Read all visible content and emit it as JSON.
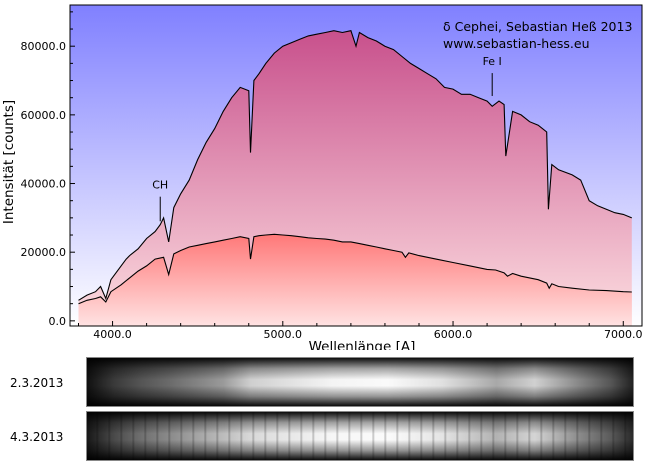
{
  "chart_data": {
    "type": "area",
    "title": "δ Cephei, Sebastian Heß 2013",
    "subtitle": "www.sebastian-hess.eu",
    "xlabel": "Wellenlänge [A]",
    "ylabel": "Intensität [counts]",
    "xlim": [
      3750,
      7110
    ],
    "ylim": [
      -1500,
      92000
    ],
    "x_ticks": [
      4000,
      5000,
      6000,
      7000
    ],
    "x_tick_labels": [
      "4000.0",
      "5000.0",
      "6000.0",
      "7000.0"
    ],
    "y_ticks": [
      0,
      20000,
      40000,
      60000,
      80000
    ],
    "y_tick_labels": [
      "0.0",
      "20000.0",
      "40000.0",
      "60000.0",
      "80000.0"
    ],
    "grid": false,
    "annotations": [
      {
        "label": "CH",
        "x": 4280,
        "y_tip": 29000,
        "y_text": 38500
      },
      {
        "label": "Fe I",
        "x": 6230,
        "y_tip": 65500,
        "y_text": 74500
      }
    ],
    "colors": {
      "background_top": "#8080ff",
      "background_bottom": "#ffffff",
      "fill_upper_top": "#c8508c",
      "fill_upper_bottom": "#ffe4e4",
      "fill_lower_top": "#ff7878",
      "fill_lower_bottom": "#ffefef",
      "line": "#000000"
    },
    "series": [
      {
        "x": [
          3800,
          3850,
          3900,
          3930,
          3960,
          3990,
          4020,
          4050,
          4080,
          4100,
          4150,
          4200,
          4250,
          4280,
          4300,
          4330,
          4360,
          4400,
          4450,
          4500,
          4550,
          4600,
          4650,
          4700,
          4750,
          4800,
          4810,
          4830,
          4860,
          4900,
          4950,
          5000,
          5050,
          5100,
          5150,
          5200,
          5250,
          5300,
          5350,
          5400,
          5430,
          5450,
          5500,
          5550,
          5600,
          5650,
          5700,
          5750,
          5800,
          5850,
          5900,
          5950,
          6000,
          6050,
          6100,
          6150,
          6200,
          6230,
          6270,
          6300,
          6310,
          6350,
          6400,
          6450,
          6500,
          6550,
          6560,
          6580,
          6620,
          6700,
          6750,
          6800,
          6850,
          6900,
          6950,
          7000,
          7050
        ],
        "values": [
          6000,
          7500,
          8500,
          10000,
          6500,
          12000,
          14000,
          16000,
          18000,
          19000,
          21000,
          24000,
          26000,
          28000,
          30000,
          23000,
          33000,
          37000,
          41000,
          47000,
          52000,
          56000,
          61000,
          65000,
          68000,
          67000,
          49000,
          70000,
          72000,
          75000,
          78000,
          80000,
          81000,
          82000,
          83000,
          83500,
          84000,
          84500,
          84000,
          84500,
          80000,
          84000,
          82500,
          81500,
          80000,
          79000,
          77000,
          75000,
          73500,
          72000,
          70500,
          68000,
          67500,
          66000,
          66000,
          65000,
          64000,
          62500,
          64000,
          63000,
          48000,
          61000,
          60000,
          58000,
          57000,
          55000,
          32500,
          45500,
          44000,
          42500,
          41000,
          35000,
          33500,
          32500,
          31500,
          31000,
          30000
        ]
      },
      {
        "x": [
          3800,
          3850,
          3900,
          3930,
          3960,
          3990,
          4050,
          4100,
          4150,
          4200,
          4250,
          4300,
          4330,
          4360,
          4400,
          4450,
          4500,
          4550,
          4600,
          4650,
          4700,
          4750,
          4800,
          4810,
          4830,
          4860,
          4900,
          4950,
          5000,
          5050,
          5100,
          5150,
          5200,
          5250,
          5300,
          5350,
          5400,
          5450,
          5500,
          5550,
          5600,
          5650,
          5700,
          5720,
          5740,
          5800,
          5900,
          6000,
          6100,
          6200,
          6250,
          6300,
          6320,
          6350,
          6400,
          6500,
          6550,
          6565,
          6580,
          6620,
          6700,
          6800,
          6900,
          7000,
          7050
        ],
        "values": [
          5000,
          6000,
          6500,
          7000,
          5500,
          8500,
          10500,
          12500,
          14500,
          16000,
          18000,
          18500,
          13500,
          19500,
          20500,
          21500,
          22000,
          22500,
          23000,
          23500,
          24000,
          24500,
          24000,
          18000,
          24500,
          24800,
          25000,
          25200,
          25000,
          24800,
          24500,
          24200,
          24000,
          23800,
          23500,
          23000,
          23000,
          22500,
          22000,
          21500,
          21000,
          20500,
          20000,
          18500,
          19800,
          19000,
          18000,
          17000,
          16000,
          15000,
          14800,
          14000,
          13000,
          13800,
          13000,
          12000,
          11000,
          9500,
          10800,
          10000,
          9500,
          9000,
          8800,
          8500,
          8400
        ]
      }
    ]
  },
  "spectrum_strips": [
    {
      "label": "2.3.2013"
    },
    {
      "label": "4.3.2013"
    }
  ]
}
